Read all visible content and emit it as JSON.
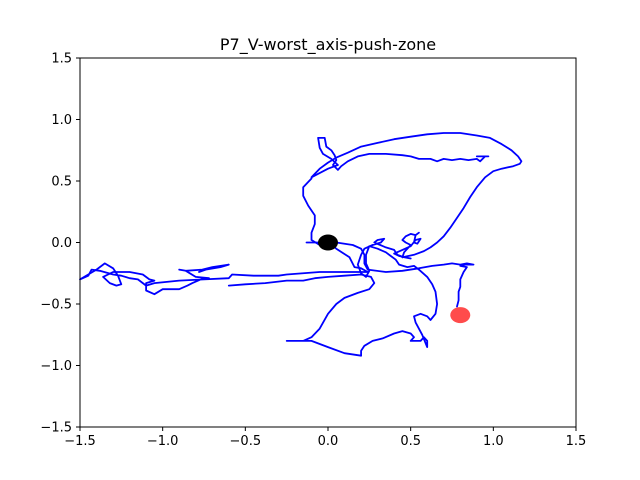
{
  "chart_data": {
    "type": "line",
    "title": "P7_V-worst_axis-push-zone",
    "xlabel": "",
    "ylabel": "",
    "xlim": [
      -1.5,
      1.5
    ],
    "ylim": [
      -1.5,
      1.5
    ],
    "grid": false,
    "x_ticks": [
      -1.5,
      -1.0,
      -0.5,
      0.0,
      0.5,
      1.0,
      1.5
    ],
    "x_tick_labels": [
      "−1.5",
      "−1.0",
      "−0.5",
      "0.0",
      "0.5",
      "1.0",
      "1.5"
    ],
    "y_ticks": [
      -1.5,
      -1.0,
      -0.5,
      0.0,
      0.5,
      1.0,
      1.5
    ],
    "y_tick_labels": [
      "−1.5",
      "−1.0",
      "−0.5",
      "0.0",
      "0.5",
      "1.0",
      "1.5"
    ],
    "series": [
      {
        "color": "#0000ff",
        "points": [
          [
            -0.13,
            0.0
          ],
          [
            -0.06,
            0.0
          ],
          [
            0.0,
            0.0
          ],
          [
            0.05,
            -0.05
          ],
          [
            0.13,
            -0.12
          ],
          [
            0.16,
            -0.2
          ],
          [
            0.2,
            -0.21
          ],
          [
            0.24,
            -0.24
          ],
          [
            0.12,
            -0.24
          ],
          [
            -0.05,
            -0.24
          ],
          [
            -0.25,
            -0.26
          ],
          [
            -0.3,
            -0.27
          ],
          [
            -0.45,
            -0.27
          ],
          [
            -0.58,
            -0.26
          ],
          [
            -0.6,
            -0.29
          ],
          [
            -0.75,
            -0.3
          ],
          [
            -0.9,
            -0.31
          ],
          [
            -1.05,
            -0.33
          ],
          [
            -1.1,
            -0.35
          ],
          [
            -1.15,
            -0.3
          ],
          [
            -1.2,
            -0.29
          ],
          [
            -1.25,
            -0.27
          ],
          [
            -1.3,
            -0.26
          ],
          [
            -1.38,
            -0.23
          ],
          [
            -1.43,
            -0.22
          ],
          [
            -1.45,
            -0.27
          ],
          [
            -1.5,
            -0.3
          ],
          [
            -1.4,
            -0.22
          ],
          [
            -1.35,
            -0.17
          ],
          [
            -1.3,
            -0.21
          ],
          [
            -1.27,
            -0.27
          ],
          [
            -1.25,
            -0.34
          ],
          [
            -1.28,
            -0.35
          ],
          [
            -1.32,
            -0.33
          ],
          [
            -1.36,
            -0.28
          ],
          [
            -1.3,
            -0.24
          ],
          [
            -1.2,
            -0.24
          ],
          [
            -1.12,
            -0.26
          ],
          [
            -1.08,
            -0.3
          ],
          [
            -1.05,
            -0.31
          ],
          [
            -1.1,
            -0.33
          ],
          [
            -1.1,
            -0.39
          ],
          [
            -1.05,
            -0.42
          ],
          [
            -1.0,
            -0.38
          ],
          [
            -0.9,
            -0.38
          ],
          [
            -0.85,
            -0.35
          ],
          [
            -0.82,
            -0.33
          ],
          [
            -0.77,
            -0.3
          ],
          [
            -0.72,
            -0.29
          ],
          [
            -0.8,
            -0.28
          ],
          [
            -0.86,
            -0.23
          ],
          [
            -0.9,
            -0.22
          ],
          [
            -0.86,
            -0.23
          ],
          [
            -0.76,
            -0.22
          ],
          [
            -0.7,
            -0.2
          ],
          [
            -0.6,
            -0.18
          ],
          [
            -0.65,
            -0.2
          ],
          [
            -0.74,
            -0.22
          ],
          [
            -0.78,
            -0.24
          ]
        ]
      },
      {
        "color": "#0000ff",
        "points": [
          [
            -0.6,
            -0.35
          ],
          [
            -0.5,
            -0.34
          ],
          [
            -0.38,
            -0.33
          ],
          [
            -0.25,
            -0.31
          ],
          [
            -0.15,
            -0.31
          ],
          [
            -0.08,
            -0.29
          ],
          [
            0.0,
            -0.28
          ],
          [
            0.1,
            -0.27
          ],
          [
            0.2,
            -0.26
          ],
          [
            0.26,
            -0.28
          ],
          [
            0.28,
            -0.33
          ],
          [
            0.25,
            -0.38
          ],
          [
            0.18,
            -0.41
          ],
          [
            0.1,
            -0.45
          ],
          [
            0.05,
            -0.5
          ],
          [
            0.0,
            -0.58
          ],
          [
            -0.05,
            -0.7
          ],
          [
            -0.1,
            -0.77
          ],
          [
            -0.15,
            -0.8
          ],
          [
            -0.25,
            -0.8
          ],
          [
            -0.1,
            -0.8
          ],
          [
            0.0,
            -0.85
          ],
          [
            0.1,
            -0.9
          ],
          [
            0.2,
            -0.92
          ],
          [
            0.2,
            -0.88
          ],
          [
            0.22,
            -0.84
          ],
          [
            0.27,
            -0.8
          ],
          [
            0.33,
            -0.78
          ],
          [
            0.4,
            -0.74
          ],
          [
            0.45,
            -0.72
          ],
          [
            0.5,
            -0.74
          ],
          [
            0.52,
            -0.77
          ],
          [
            0.5,
            -0.8
          ],
          [
            0.56,
            -0.8
          ],
          [
            0.58,
            -0.77
          ],
          [
            0.6,
            -0.8
          ],
          [
            0.6,
            -0.85
          ],
          [
            0.57,
            -0.75
          ],
          [
            0.53,
            -0.65
          ],
          [
            0.52,
            -0.6
          ],
          [
            0.56,
            -0.58
          ],
          [
            0.6,
            -0.6
          ],
          [
            0.62,
            -0.63
          ],
          [
            0.65,
            -0.58
          ],
          [
            0.66,
            -0.5
          ],
          [
            0.65,
            -0.4
          ],
          [
            0.63,
            -0.34
          ],
          [
            0.6,
            -0.28
          ],
          [
            0.55,
            -0.22
          ],
          [
            0.52,
            -0.19
          ],
          [
            0.48,
            -0.2
          ],
          [
            0.43,
            -0.18
          ],
          [
            0.41,
            -0.14
          ],
          [
            0.38,
            -0.11
          ],
          [
            0.35,
            -0.08
          ],
          [
            0.3,
            -0.05
          ],
          [
            0.25,
            -0.03
          ],
          [
            0.23,
            -0.1
          ],
          [
            0.23,
            -0.17
          ],
          [
            0.25,
            -0.23
          ],
          [
            0.23,
            -0.28
          ],
          [
            0.2,
            -0.25
          ],
          [
            0.18,
            -0.18
          ],
          [
            0.2,
            -0.1
          ],
          [
            0.22,
            -0.05
          ],
          [
            0.27,
            -0.02
          ],
          [
            0.32,
            0.0
          ],
          [
            0.34,
            0.03
          ],
          [
            0.3,
            0.02
          ],
          [
            0.28,
            0.0
          ],
          [
            0.35,
            -0.04
          ],
          [
            0.4,
            -0.06
          ],
          [
            0.42,
            -0.1
          ],
          [
            0.46,
            -0.12
          ],
          [
            0.5,
            -0.13
          ],
          [
            0.43,
            -0.11
          ],
          [
            0.4,
            -0.09
          ],
          [
            0.45,
            -0.06
          ],
          [
            0.5,
            -0.03
          ],
          [
            0.53,
            0.02
          ],
          [
            0.56,
            0.03
          ],
          [
            0.54,
            -0.01
          ],
          [
            0.52,
            0.0
          ],
          [
            0.53,
            0.06
          ],
          [
            0.55,
            0.08
          ],
          [
            0.53,
            0.06
          ],
          [
            0.5,
            0.07
          ],
          [
            0.47,
            0.05
          ],
          [
            0.45,
            0.02
          ],
          [
            0.47,
            0.0
          ],
          [
            0.5,
            -0.02
          ],
          [
            0.46,
            -0.08
          ],
          [
            0.45,
            -0.12
          ]
        ]
      },
      {
        "color": "#0000ff",
        "points": [
          [
            0.45,
            -0.12
          ],
          [
            0.52,
            -0.1
          ],
          [
            0.58,
            -0.07
          ],
          [
            0.62,
            -0.04
          ],
          [
            0.66,
            0.0
          ],
          [
            0.7,
            0.05
          ],
          [
            0.74,
            0.12
          ],
          [
            0.78,
            0.2
          ],
          [
            0.82,
            0.28
          ],
          [
            0.86,
            0.37
          ],
          [
            0.9,
            0.45
          ],
          [
            0.95,
            0.53
          ],
          [
            1.0,
            0.58
          ],
          [
            1.05,
            0.6
          ],
          [
            1.12,
            0.62
          ],
          [
            1.16,
            0.64
          ],
          [
            1.17,
            0.66
          ],
          [
            1.15,
            0.7
          ],
          [
            1.11,
            0.75
          ],
          [
            1.05,
            0.8
          ],
          [
            0.98,
            0.85
          ],
          [
            0.9,
            0.87
          ],
          [
            0.8,
            0.89
          ],
          [
            0.7,
            0.89
          ],
          [
            0.6,
            0.88
          ],
          [
            0.5,
            0.86
          ],
          [
            0.4,
            0.84
          ],
          [
            0.3,
            0.81
          ],
          [
            0.2,
            0.78
          ],
          [
            0.12,
            0.73
          ],
          [
            0.05,
            0.69
          ],
          [
            0.0,
            0.65
          ],
          [
            -0.05,
            0.6
          ],
          [
            -0.1,
            0.53
          ],
          [
            0.0,
            0.6
          ],
          [
            0.06,
            0.63
          ],
          [
            0.02,
            0.68
          ],
          [
            -0.03,
            0.72
          ],
          [
            -0.05,
            0.77
          ],
          [
            -0.06,
            0.85
          ],
          [
            -0.02,
            0.85
          ],
          [
            -0.01,
            0.78
          ],
          [
            0.02,
            0.75
          ],
          [
            0.04,
            0.71
          ],
          [
            0.05,
            0.67
          ],
          [
            0.03,
            0.63
          ],
          [
            0.06,
            0.59
          ],
          [
            0.08,
            0.62
          ],
          [
            0.12,
            0.66
          ],
          [
            0.18,
            0.7
          ],
          [
            0.25,
            0.72
          ],
          [
            0.35,
            0.72
          ],
          [
            0.45,
            0.71
          ],
          [
            0.5,
            0.7
          ],
          [
            0.55,
            0.68
          ],
          [
            0.62,
            0.68
          ],
          [
            0.66,
            0.66
          ],
          [
            0.7,
            0.68
          ],
          [
            0.75,
            0.67
          ],
          [
            0.8,
            0.68
          ],
          [
            0.85,
            0.67
          ],
          [
            0.9,
            0.68
          ],
          [
            0.92,
            0.66
          ],
          [
            0.95,
            0.7
          ],
          [
            0.97,
            0.7
          ],
          [
            0.9,
            0.7
          ]
        ]
      },
      {
        "color": "#0000ff",
        "points": [
          [
            -0.1,
            0.52
          ],
          [
            -0.15,
            0.45
          ],
          [
            -0.15,
            0.38
          ],
          [
            -0.12,
            0.3
          ],
          [
            -0.08,
            0.22
          ],
          [
            -0.08,
            0.15
          ],
          [
            -0.1,
            0.08
          ],
          [
            -0.1,
            0.02
          ],
          [
            -0.05,
            -0.02
          ],
          [
            0.05,
            0.0
          ],
          [
            0.15,
            -0.02
          ],
          [
            0.2,
            -0.05
          ],
          [
            0.22,
            -0.1
          ],
          [
            0.22,
            -0.17
          ],
          [
            0.24,
            -0.22
          ],
          [
            0.35,
            -0.24
          ],
          [
            0.45,
            -0.23
          ],
          [
            0.55,
            -0.21
          ],
          [
            0.63,
            -0.19
          ],
          [
            0.7,
            -0.18
          ],
          [
            0.75,
            -0.17
          ],
          [
            0.8,
            -0.18
          ],
          [
            0.84,
            -0.17
          ],
          [
            0.88,
            -0.18
          ],
          [
            0.83,
            -0.18
          ],
          [
            0.8,
            -0.19
          ],
          [
            0.84,
            -0.2
          ],
          [
            0.82,
            -0.24
          ],
          [
            0.8,
            -0.3
          ],
          [
            0.8,
            -0.36
          ],
          [
            0.79,
            -0.4
          ],
          [
            0.79,
            -0.47
          ],
          [
            0.78,
            -0.52
          ]
        ]
      }
    ],
    "markers": [
      {
        "x": 0.0,
        "y": 0.0,
        "color": "#000000",
        "alpha": 1.0
      },
      {
        "x": 0.8,
        "y": -0.59,
        "color": "#ff0000",
        "alpha": 0.7
      }
    ]
  }
}
